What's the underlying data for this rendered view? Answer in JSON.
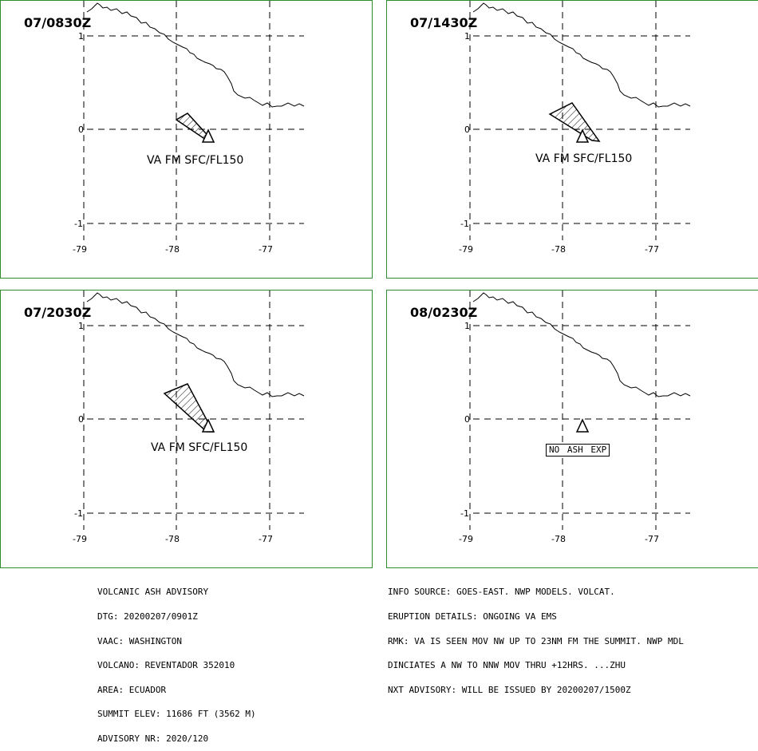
{
  "panels": [
    {
      "time": "07/0830Z",
      "label": "VA FM SFC/FL150",
      "ash": "small"
    },
    {
      "time": "07/1430Z",
      "label": "VA FM SFC/FL150",
      "ash": "medium"
    },
    {
      "time": "07/2030Z",
      "label": "VA FM SFC/FL150",
      "ash": "large"
    },
    {
      "time": "08/0230Z",
      "label": "NO ASH EXP",
      "ash": "none"
    }
  ],
  "axes": {
    "x_ticks": [
      "-79",
      "-78",
      "-77"
    ],
    "y_ticks": [
      "1",
      "0",
      "-1"
    ]
  },
  "advisory": {
    "left": [
      "VOLCANIC ASH ADVISORY",
      "DTG: 20200207/0901Z",
      "VAAC: WASHINGTON",
      "VOLCANO: REVENTADOR 352010",
      "AREA: ECUADOR",
      "SUMMIT ELEV: 11686 FT (3562 M)",
      "ADVISORY NR: 2020/120"
    ],
    "right": [
      "INFO SOURCE: GOES-EAST. NWP MODELS. VOLCAT.",
      "ERUPTION DETAILS: ONGOING VA EMS",
      "RMK: VA IS SEEN MOV NW UP TO 23NM FM THE SUMMIT. NWP MDL",
      "DINCIATES A NW TO NNW MOV THRU +12HRS. ...ZHU",
      "NXT ADVISORY: WILL BE ISSUED BY 20200207/1500Z"
    ]
  },
  "colors": {
    "panel_border": "#2e8b2e"
  }
}
